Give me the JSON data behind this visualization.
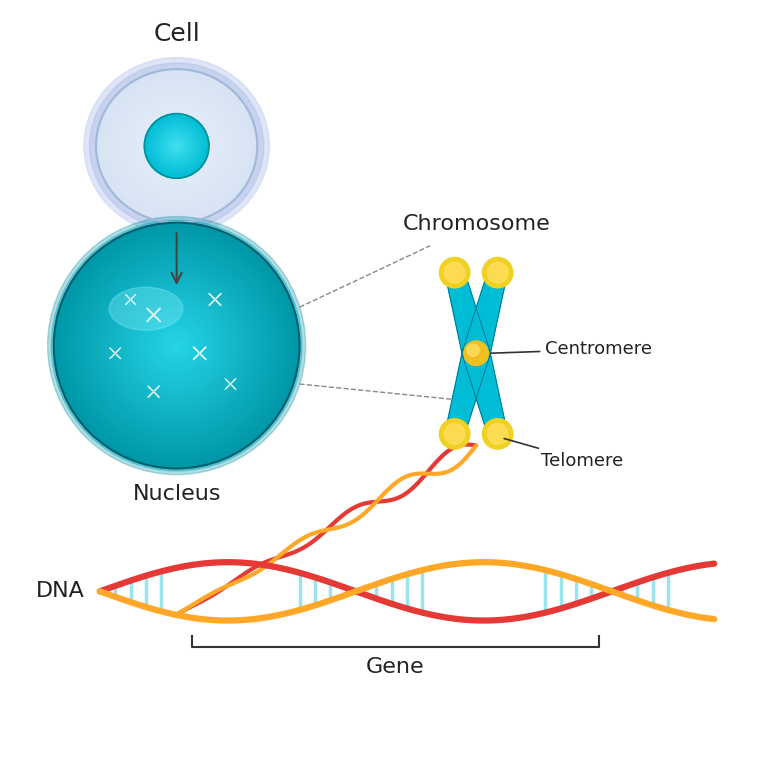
{
  "background_color": "#ffffff",
  "title_fontsize": 18,
  "label_fontsize": 16,
  "cell_label": "Cell",
  "nucleus_label": "Nucleus",
  "chromosome_label": "Chromosome",
  "centromere_label": "Centromere",
  "telomere_label": "Telomere",
  "dna_label": "DNA",
  "gene_label": "Gene",
  "cell_outer_color": "#d0d8f0",
  "cell_inner_color": "#00bcd4",
  "nucleus_outer_color": "#00acc1",
  "nucleus_inner_color": "#26c6da",
  "chromosome_color": "#00bcd4",
  "chromosome_tip_color": "#f5e642",
  "centromere_color": "#f5c842",
  "dna_strand1_color": "#e53935",
  "dna_strand2_color": "#ffa726",
  "dna_rung_color": "#80deea"
}
